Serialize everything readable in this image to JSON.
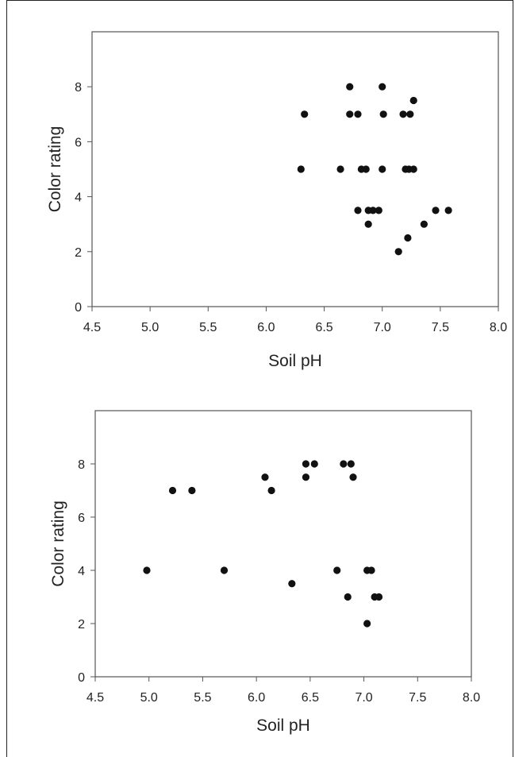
{
  "chart_data": [
    {
      "type": "scatter",
      "xlabel": "Soil pH",
      "ylabel": "Color rating",
      "xlim": [
        4.5,
        8.0
      ],
      "ylim": [
        0,
        10
      ],
      "xticks": [
        "4.5",
        "5.0",
        "5.5",
        "6.0",
        "6.5",
        "7.0",
        "7.5",
        "8.0"
      ],
      "yticks": [
        "0",
        "2",
        "4",
        "6",
        "8"
      ],
      "grid": false,
      "points": [
        {
          "x": 6.3,
          "y": 5
        },
        {
          "x": 6.33,
          "y": 7
        },
        {
          "x": 6.64,
          "y": 5
        },
        {
          "x": 6.72,
          "y": 8
        },
        {
          "x": 6.72,
          "y": 7
        },
        {
          "x": 6.79,
          "y": 7
        },
        {
          "x": 6.82,
          "y": 5
        },
        {
          "x": 6.86,
          "y": 5
        },
        {
          "x": 6.79,
          "y": 3.5
        },
        {
          "x": 6.88,
          "y": 3.5
        },
        {
          "x": 6.92,
          "y": 3.5
        },
        {
          "x": 6.97,
          "y": 3.5
        },
        {
          "x": 6.88,
          "y": 3
        },
        {
          "x": 7.0,
          "y": 8
        },
        {
          "x": 7.01,
          "y": 7
        },
        {
          "x": 7.0,
          "y": 5
        },
        {
          "x": 7.18,
          "y": 7
        },
        {
          "x": 7.24,
          "y": 7
        },
        {
          "x": 7.27,
          "y": 7.5
        },
        {
          "x": 7.2,
          "y": 5
        },
        {
          "x": 7.23,
          "y": 5
        },
        {
          "x": 7.27,
          "y": 5
        },
        {
          "x": 7.22,
          "y": 2.5
        },
        {
          "x": 7.14,
          "y": 2
        },
        {
          "x": 7.36,
          "y": 3
        },
        {
          "x": 7.46,
          "y": 3.5
        },
        {
          "x": 7.57,
          "y": 3.5
        }
      ]
    },
    {
      "type": "scatter",
      "xlabel": "Soil pH",
      "ylabel": "Color rating",
      "xlim": [
        4.5,
        8.0
      ],
      "ylim": [
        0,
        10
      ],
      "xticks": [
        "4.5",
        "5.0",
        "5.5",
        "6.0",
        "6.5",
        "7.0",
        "7.5",
        "8.0"
      ],
      "yticks": [
        "0",
        "2",
        "4",
        "6",
        "8"
      ],
      "grid": false,
      "points": [
        {
          "x": 4.98,
          "y": 4
        },
        {
          "x": 5.22,
          "y": 7
        },
        {
          "x": 5.4,
          "y": 7
        },
        {
          "x": 5.7,
          "y": 4
        },
        {
          "x": 6.08,
          "y": 7.5
        },
        {
          "x": 6.14,
          "y": 7
        },
        {
          "x": 6.33,
          "y": 3.5
        },
        {
          "x": 6.46,
          "y": 8
        },
        {
          "x": 6.46,
          "y": 7.5
        },
        {
          "x": 6.54,
          "y": 8
        },
        {
          "x": 6.75,
          "y": 4
        },
        {
          "x": 6.81,
          "y": 8
        },
        {
          "x": 6.88,
          "y": 8
        },
        {
          "x": 6.9,
          "y": 7.5
        },
        {
          "x": 6.85,
          "y": 3
        },
        {
          "x": 7.03,
          "y": 4
        },
        {
          "x": 7.07,
          "y": 4
        },
        {
          "x": 7.03,
          "y": 2
        },
        {
          "x": 7.1,
          "y": 3
        },
        {
          "x": 7.14,
          "y": 3
        }
      ]
    }
  ]
}
